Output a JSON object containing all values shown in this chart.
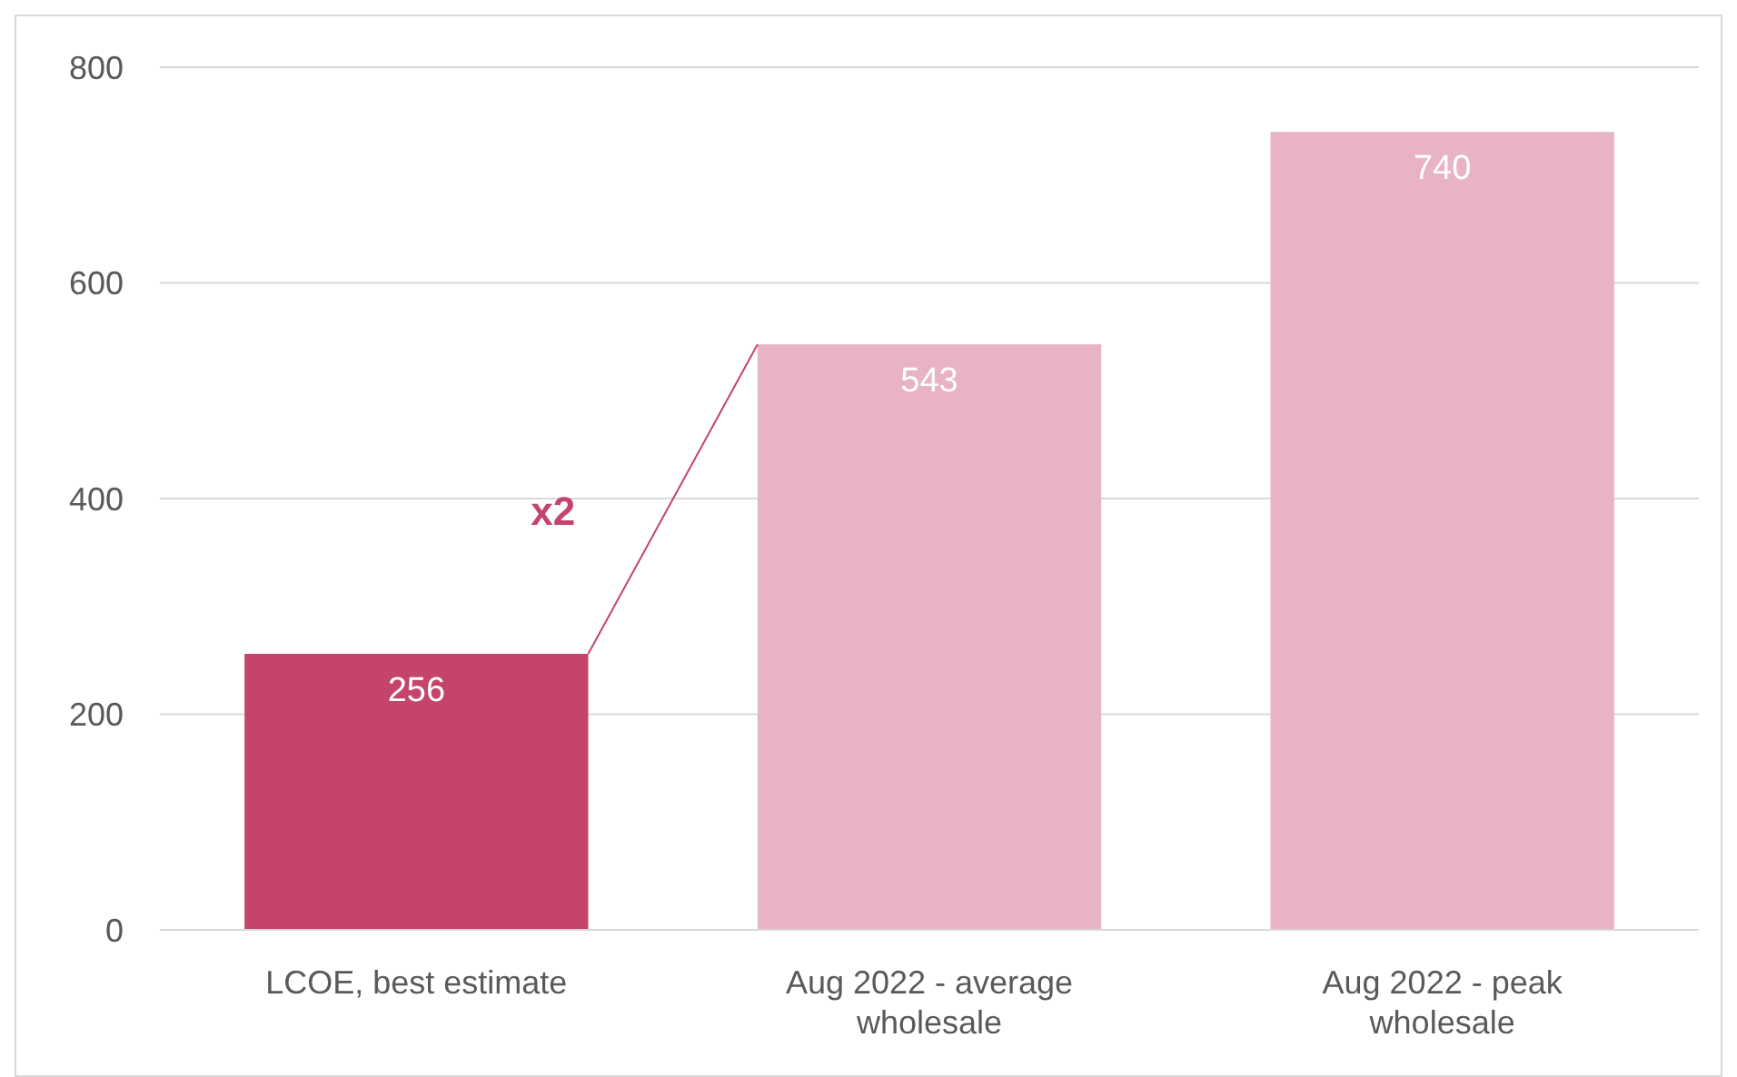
{
  "chart_data": {
    "type": "bar",
    "categories": [
      "LCOE, best estimate",
      "Aug 2022 - average wholesale",
      "Aug 2022 - peak wholesale"
    ],
    "values": [
      256,
      543,
      740
    ],
    "colors": [
      "#c4446c",
      "#e8b3c5",
      "#e8b3c5"
    ],
    "ylim": [
      0,
      800
    ],
    "yticks": [
      0,
      200,
      400,
      600,
      800
    ],
    "grid": "y",
    "data_labels": true,
    "annotations": [
      "x2"
    ]
  }
}
